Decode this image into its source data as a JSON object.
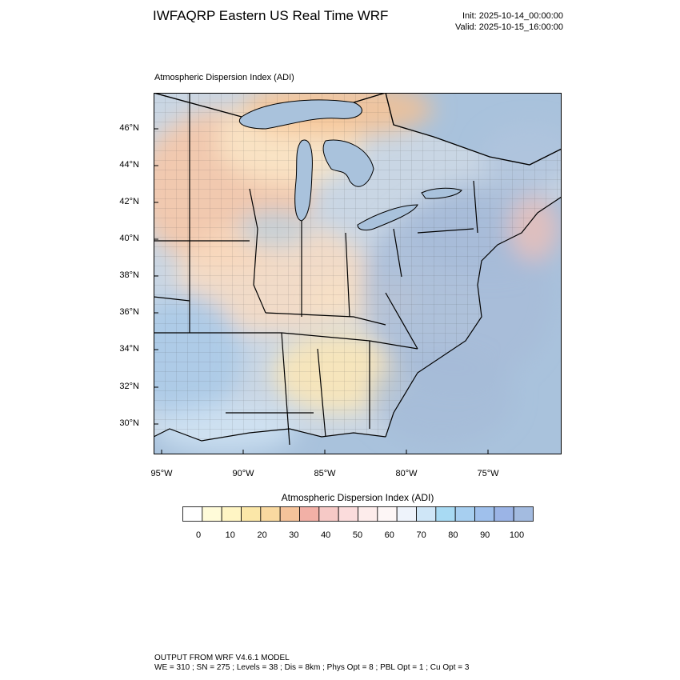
{
  "header": {
    "title": "IWFAQRP Eastern US Real Time WRF",
    "init": "Init: 2025-10-14_00:00:00",
    "valid": "Valid: 2025-10-15_16:00:00"
  },
  "map": {
    "title": "Atmospheric Dispersion Index   (ADI)",
    "lat_labels": [
      "46°N",
      "44°N",
      "42°N",
      "40°N",
      "38°N",
      "36°N",
      "34°N",
      "32°N",
      "30°N"
    ],
    "lon_labels": [
      "95°W",
      "90°W",
      "85°W",
      "80°W",
      "75°W"
    ],
    "colors": {
      "ocean": "#a9c2dc",
      "land_base": "#c9d6e4",
      "low_adi": "#f6c9a8",
      "mid_adi": "#fbe9c4",
      "high_adi": "#a3c0e0"
    }
  },
  "colorbar": {
    "title": "Atmospheric Dispersion Index  (ADI)",
    "labels": [
      "0",
      "10",
      "20",
      "30",
      "40",
      "50",
      "60",
      "70",
      "80",
      "90",
      "100"
    ],
    "colors": [
      "#ffffff",
      "#fffbd9",
      "#fff5c4",
      "#fbe7a8",
      "#f9d9a0",
      "#f5c39a",
      "#f2b0a6",
      "#f6c9c6",
      "#fbdcdc",
      "#fdeceb",
      "#fdf6f6",
      "#eef3fb",
      "#cfe6f7",
      "#a8daf3",
      "#a7cff0",
      "#9fc0ec",
      "#9bb4e6",
      "#a3bbe0"
    ]
  },
  "footer": {
    "line1": "OUTPUT FROM WRF V4.6.1 MODEL",
    "line2": "WE = 310 ; SN = 275 ; Levels = 38 ; Dis = 8km ; Phys Opt = 8 ; PBL Opt = 1 ; Cu Opt = 3"
  }
}
